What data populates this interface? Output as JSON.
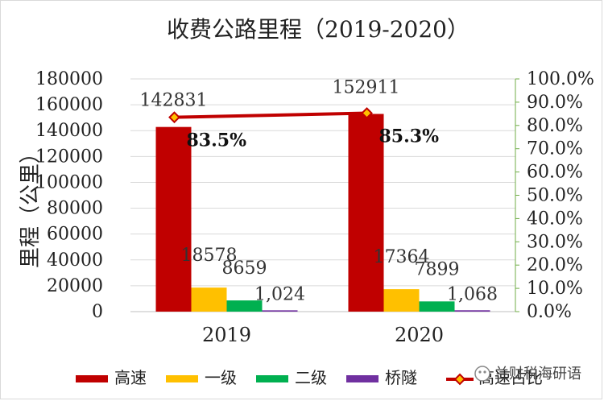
{
  "chart_data": {
    "type": "bar",
    "title": "收费公路里程（2019-2020）",
    "ylabel": "里程（公里）",
    "ylim": [
      0,
      180000
    ],
    "y2lim": [
      0,
      1
    ],
    "yticks": [
      "0",
      "20000",
      "40000",
      "60000",
      "80000",
      "100000",
      "120000",
      "140000",
      "160000",
      "180000"
    ],
    "y2ticks": [
      "0.0%",
      "10.0%",
      "20.0%",
      "30.0%",
      "40.0%",
      "50.0%",
      "60.0%",
      "70.0%",
      "80.0%",
      "90.0%",
      "100.0%"
    ],
    "categories": [
      "2019",
      "2020"
    ],
    "series": [
      {
        "name": "高速",
        "values": [
          142831,
          152911
        ],
        "labels": [
          "142831",
          "152911"
        ],
        "color": "#c00000"
      },
      {
        "name": "一级",
        "values": [
          18578,
          17364
        ],
        "labels": [
          "18578",
          "17364"
        ],
        "color": "#ffc000"
      },
      {
        "name": "二级",
        "values": [
          8659,
          7899
        ],
        "labels": [
          "8659",
          "7899"
        ],
        "color": "#00b050"
      },
      {
        "name": "桥隧",
        "values": [
          1024,
          1068
        ],
        "labels": [
          "1,024",
          "1,068"
        ],
        "color": "#7030a0"
      }
    ],
    "line_series": {
      "name": "高速占比",
      "values": [
        0.835,
        0.853
      ],
      "labels": [
        "83.5%",
        "85.3%"
      ],
      "color": "#c00000",
      "marker_color": "#ffc000"
    },
    "legend_position": "bottom",
    "grid": true
  },
  "watermark": "兰财税海研语"
}
